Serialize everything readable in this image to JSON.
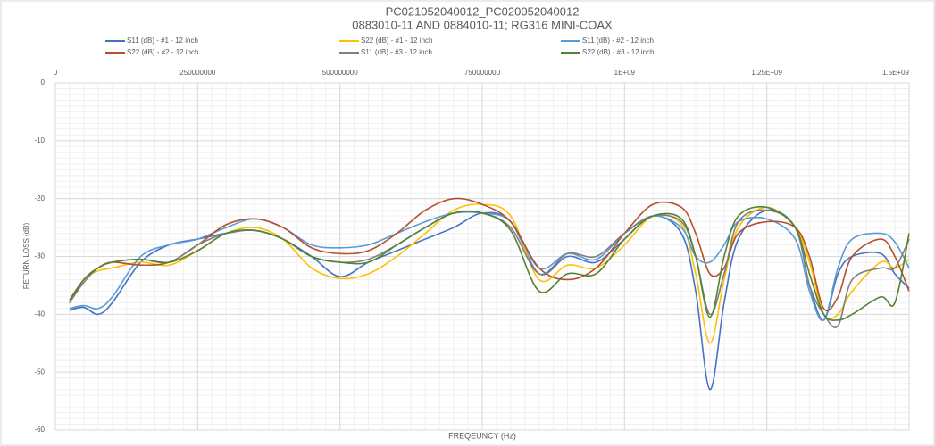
{
  "chart_data": {
    "type": "line",
    "title": "PC021052040012_PC020052040012",
    "subtitle": "0883010-11 AND 0884010-11; RG316 MINI-COAX",
    "x_label": "FREQEUNCY (Hz)",
    "y_label": "RETURN LOSS (dB)",
    "x": [
      25000000,
      50000000,
      75000000,
      100000000,
      150000000,
      200000000,
      250000000,
      300000000,
      350000000,
      400000000,
      450000000,
      500000000,
      550000000,
      600000000,
      650000000,
      700000000,
      750000000,
      800000000,
      850000000,
      900000000,
      950000000,
      1000000000,
      1050000000,
      1100000000,
      1125000000,
      1150000000,
      1175000000,
      1200000000,
      1250000000,
      1300000000,
      1325000000,
      1350000000,
      1375000000,
      1400000000,
      1450000000,
      1475000000,
      1500000000
    ],
    "series": [
      {
        "name": "S11 (dB) - #1 - 12 inch",
        "color": "#4472c4",
        "values": [
          -39.3,
          -38.8,
          -40,
          -38,
          -31,
          -28,
          -27,
          -26,
          -25.5,
          -27,
          -30,
          -33.5,
          -31,
          -29,
          -27,
          -25,
          -22.5,
          -24,
          -33,
          -30,
          -31,
          -27,
          -23,
          -26,
          -36,
          -53,
          -38,
          -27,
          -22,
          -25,
          -35,
          -41,
          -33,
          -30,
          -29.5,
          -33,
          -35.5
        ]
      },
      {
        "name": "S22 (dB) - #1 - 12 inch",
        "color": "#ffc000",
        "values": [
          -38,
          -34,
          -32.5,
          -32,
          -31,
          -31.5,
          -29,
          -26,
          -25,
          -27,
          -32,
          -33.8,
          -33,
          -30,
          -26,
          -22,
          -21,
          -23,
          -34,
          -31.5,
          -32,
          -28,
          -23,
          -24.5,
          -33,
          -45,
          -34,
          -25,
          -21.5,
          -25,
          -31,
          -40,
          -40,
          -36,
          -31,
          -32,
          -30.5
        ]
      },
      {
        "name": "S11 (dB) - #2 - 12 inch",
        "color": "#5b9bd5",
        "values": [
          -39,
          -38.5,
          -39,
          -37,
          -30,
          -28,
          -27,
          -25,
          -23.5,
          -25,
          -28,
          -28.5,
          -28,
          -26,
          -24,
          -22.5,
          -22.5,
          -24,
          -32,
          -29.5,
          -30.5,
          -26,
          -23,
          -25,
          -30,
          -31,
          -28,
          -24,
          -23.5,
          -27,
          -36,
          -41,
          -32,
          -27,
          -26,
          -27.5,
          -32
        ]
      },
      {
        "name": "S22 (dB) - #2 - 12 inch",
        "color": "#b5502d",
        "values": [
          -38,
          -34,
          -32,
          -31,
          -31.5,
          -31,
          -28,
          -24.5,
          -23.5,
          -25,
          -28.5,
          -29.5,
          -29,
          -26,
          -22,
          -20,
          -21,
          -24,
          -32,
          -34,
          -32,
          -26,
          -21,
          -21.5,
          -26,
          -33,
          -32,
          -26,
          -24,
          -25,
          -30,
          -39,
          -37,
          -30,
          -27,
          -30,
          -36
        ]
      },
      {
        "name": "S11 (dB) - #3 - 12 inch",
        "color": "#7f7f7f",
        "values": [
          -38,
          -34.5,
          -32,
          -31,
          -30.5,
          -31,
          -28,
          -26,
          -25.5,
          -27,
          -30,
          -31,
          -30.5,
          -28,
          -25,
          -22.5,
          -22.5,
          -25,
          -33,
          -29.5,
          -30,
          -26,
          -23,
          -24,
          -30,
          -40,
          -33,
          -24,
          -22,
          -25,
          -35,
          -40,
          -42,
          -34,
          -32,
          -32,
          -27
        ]
      },
      {
        "name": "S22 (dB) - #3 - 12 inch",
        "color": "#548235",
        "values": [
          -37.5,
          -34,
          -32,
          -31,
          -30.5,
          -31,
          -29,
          -26,
          -25.5,
          -27,
          -30,
          -31,
          -31,
          -28,
          -25,
          -22.5,
          -22.5,
          -25.5,
          -36,
          -33,
          -33,
          -27,
          -23,
          -23.5,
          -30,
          -40.5,
          -30,
          -23,
          -21.5,
          -25,
          -33,
          -40,
          -41,
          -40,
          -37,
          -38,
          -26
        ]
      }
    ],
    "xlim": [
      0,
      1500000000
    ],
    "xticks": [
      0,
      250000000,
      500000000,
      750000000,
      {
        "value": 1000000000,
        "label": "1E+09"
      },
      {
        "value": 1250000000,
        "label": "1.25E+09"
      },
      {
        "value": 1500000000,
        "label": "1.5E+09"
      }
    ],
    "ylim": [
      -60,
      0
    ],
    "yticks": [
      0,
      -10,
      -20,
      -30,
      -40,
      -50,
      -60
    ],
    "grid": true,
    "legend": "top"
  }
}
